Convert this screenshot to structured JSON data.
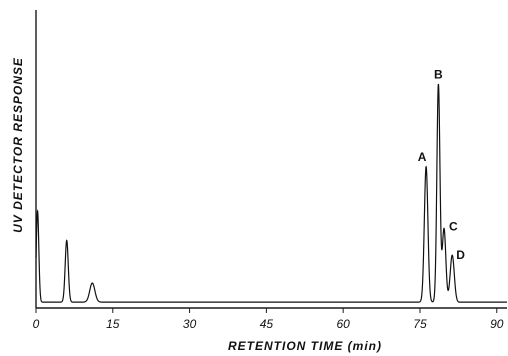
{
  "chart_data": {
    "type": "line",
    "title": "",
    "xlabel": "RETENTION TIME (min)",
    "ylabel": "UV DETECTOR RESPONSE",
    "xlim": [
      0,
      92
    ],
    "ylim": [
      0,
      100
    ],
    "x_ticks": [
      0,
      15,
      30,
      45,
      60,
      75,
      90
    ],
    "grid": false,
    "baseline": 2,
    "peaks": [
      {
        "name": "",
        "time": 0.3,
        "height": 33,
        "width": 0.25
      },
      {
        "name": "",
        "time": 6.0,
        "height": 23,
        "width": 0.3
      },
      {
        "name": "",
        "time": 11.0,
        "height": 8.5,
        "width": 0.5
      },
      {
        "name": "",
        "time": 60.5,
        "height": 1.5,
        "width": 2.0
      },
      {
        "name": "A",
        "time": 76.2,
        "height": 48,
        "width": 0.35
      },
      {
        "name": "B",
        "time": 78.6,
        "height": 76,
        "width": 0.3
      },
      {
        "name": "C",
        "time": 79.7,
        "height": 27,
        "width": 0.35
      },
      {
        "name": "D",
        "time": 81.3,
        "height": 18,
        "width": 0.4
      },
      {
        "name": "",
        "time": 88.0,
        "height": 1.2,
        "width": 2.5
      }
    ]
  }
}
